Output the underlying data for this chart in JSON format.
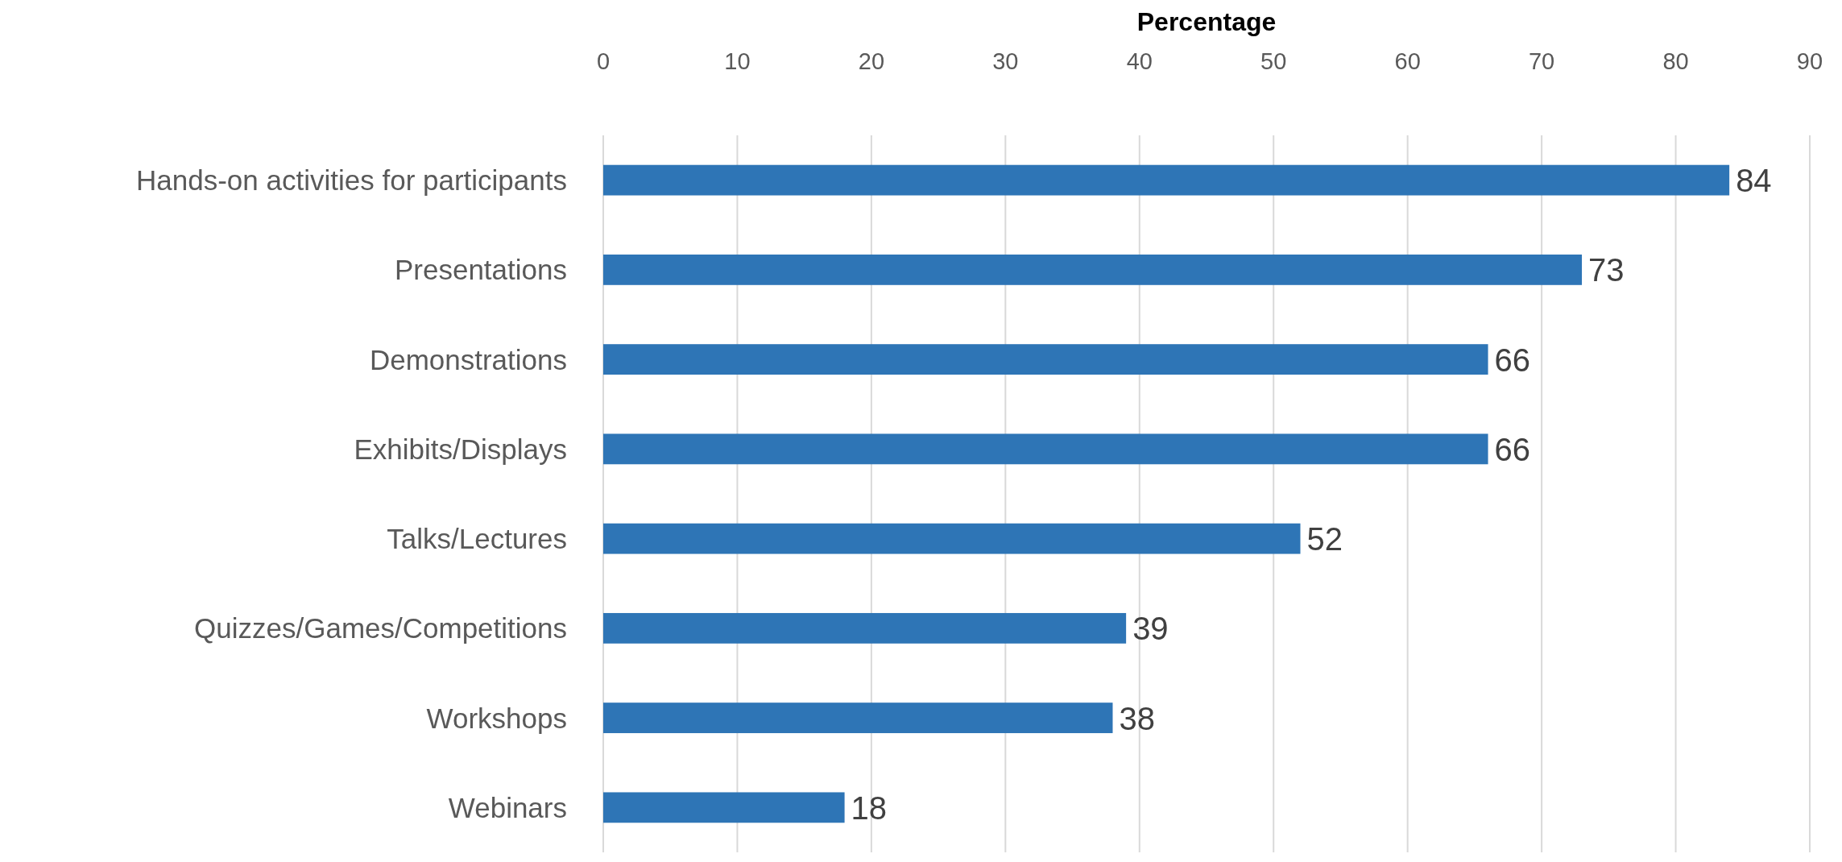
{
  "chart_data": {
    "type": "bar",
    "orientation": "horizontal",
    "xlabel": "Percentage",
    "categories": [
      "Hands-on activities for participants",
      "Presentations",
      "Demonstrations",
      "Exhibits/Displays",
      "Talks/Lectures",
      "Quizzes/Games/Competitions",
      "Workshops",
      "Webinars"
    ],
    "values": [
      84,
      73,
      66,
      66,
      52,
      39,
      38,
      18
    ],
    "color": "#2e75b6",
    "xlim": [
      0,
      90
    ],
    "xticks": [
      0,
      10,
      20,
      30,
      40,
      50,
      60,
      70,
      80,
      90
    ],
    "grid": "x",
    "data_labels": true
  }
}
